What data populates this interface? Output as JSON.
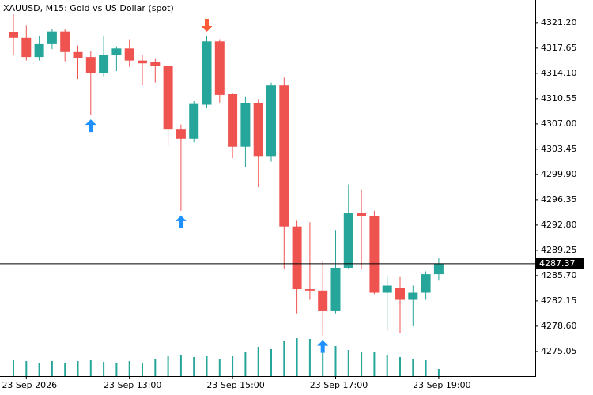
{
  "chart_data": {
    "type": "candlestick",
    "title": "XAUUSD, M15:  Gold vs US Dollar (spot)",
    "categories": [
      null,
      "23 Sep 2026",
      null,
      null,
      null,
      null,
      null,
      null,
      null,
      "23 Sep 13:00",
      null,
      null,
      null,
      null,
      null,
      null,
      null,
      "23 Sep 15:00",
      null,
      null,
      null,
      null,
      null,
      null,
      null,
      "23 Sep 17:00",
      null,
      null,
      null,
      null,
      null,
      null,
      null,
      "23 Sep 19:00"
    ],
    "open": [
      4319.9,
      4319.1,
      4316.4,
      4318.2,
      4320.0,
      4317.1,
      4316.4,
      4314.1,
      4316.7,
      4317.6,
      4315.9,
      4315.7,
      4315.1,
      4306.3,
      4304.9,
      4309.7,
      4318.6,
      4311.2,
      4303.8,
      4309.9,
      4302.4,
      4312.4,
      4292.6,
      4283.8,
      4283.6,
      4280.7,
      4286.8,
      4294.5,
      4294.1,
      4283.3,
      4284.0,
      4282.3,
      4283.3,
      4285.9
    ],
    "high": [
      4322.4,
      4320.8,
      4319.3,
      4320.3,
      4320.3,
      4318.0,
      4317.3,
      4319.3,
      4317.9,
      4318.9,
      4316.7,
      4316.1,
      4315.2,
      4306.9,
      4310.2,
      4319.3,
      4318.9,
      4311.3,
      4310.8,
      4310.5,
      4312.8,
      4313.5,
      4293.4,
      4293.2,
      4287.8,
      4292.1,
      4298.5,
      4297.8,
      4294.8,
      4285.5,
      4285.5,
      4284.3,
      4286.3,
      4288.2
    ],
    "low": [
      4316.7,
      4315.9,
      4315.9,
      4317.5,
      4315.8,
      4313.3,
      4308.3,
      4313.7,
      4314.4,
      4315.0,
      4312.4,
      4312.8,
      4303.9,
      4294.8,
      4304.4,
      4309.2,
      4310.0,
      4302.2,
      4300.9,
      4298.1,
      4301.7,
      4286.7,
      4280.4,
      4282.3,
      4277.3,
      4280.4,
      4286.6,
      4286.7,
      4283.1,
      4278.0,
      4277.7,
      4278.6,
      4282.3,
      4285.0
    ],
    "close": [
      4319.1,
      4316.4,
      4318.2,
      4320.0,
      4317.1,
      4316.3,
      4314.1,
      4316.7,
      4317.6,
      4315.9,
      4315.5,
      4315.1,
      4306.3,
      4304.9,
      4309.8,
      4318.6,
      4311.1,
      4303.8,
      4309.9,
      4302.4,
      4312.4,
      4292.6,
      4283.8,
      4283.6,
      4280.7,
      4286.8,
      4294.5,
      4294.1,
      4283.3,
      4284.3,
      4282.3,
      4283.3,
      4285.9,
      4287.37
    ],
    "volume": [
      20,
      19,
      17,
      19,
      17,
      19,
      20,
      18,
      16,
      19,
      17,
      21,
      25,
      27,
      24,
      25,
      22,
      25,
      30,
      37,
      34,
      44,
      48,
      47,
      40,
      38,
      33,
      31,
      31,
      26,
      24,
      22,
      20,
      9
    ],
    "buy_signals": [
      6,
      13,
      24
    ],
    "sell_signals": [
      15
    ],
    "up_color": "#26a69a",
    "down_color": "#ef5350",
    "volume_color": "#26a69a",
    "buy_color": "#1e90ff",
    "sell_color": "#ff5a36",
    "ylim": [
      4271.6,
      4324.4
    ],
    "yticks": [
      {
        "value": 4321.2,
        "label": "4321.20"
      },
      4317.65,
      {
        "value": 4314.1,
        "label": "4314.10"
      },
      4310.55,
      {
        "value": 4307,
        "label": "4307.00"
      },
      4303.45,
      {
        "value": 4299.9,
        "label": "4299.90"
      },
      4296.35,
      {
        "value": 4292.8,
        "label": "4292.80"
      },
      4289.25,
      {
        "value": 4285.7,
        "label": "4285.70"
      },
      4282.15,
      {
        "value": 4278.6,
        "label": "4278.60"
      },
      4275.05
    ]
  }
}
